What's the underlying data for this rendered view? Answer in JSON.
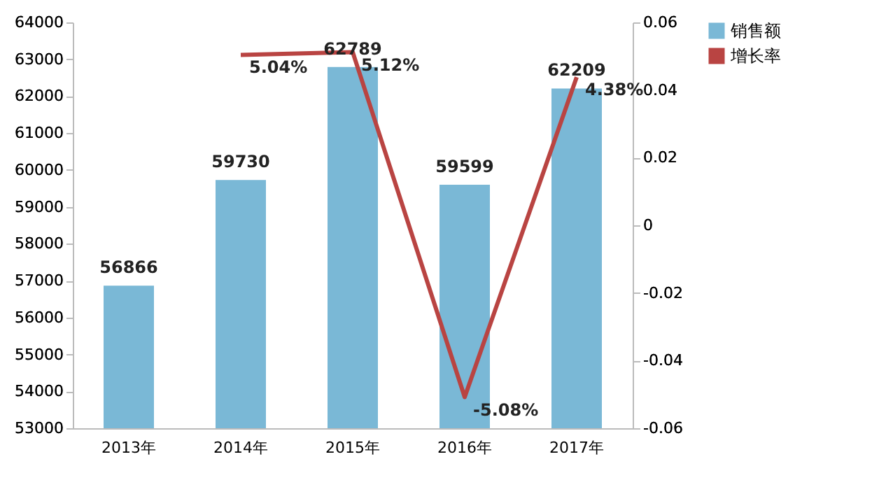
{
  "chart_data": {
    "type": "bar",
    "categories": [
      "2013年",
      "2014年",
      "2015年",
      "2016年",
      "2017年"
    ],
    "series": [
      {
        "name": "销售额",
        "color": "#7ab8d6",
        "values": [
          56866,
          59730,
          62789,
          59599,
          62209
        ]
      },
      {
        "name": "增长率",
        "type": "line",
        "axis": "y2",
        "color": "#b94442",
        "values": [
          null,
          0.0504,
          0.0512,
          -0.0508,
          0.0438
        ],
        "value_labels": [
          null,
          "5.04%",
          "5.12%",
          "-5.08%",
          "4.38%"
        ]
      }
    ],
    "data_labels": true,
    "ylim": [
      53000,
      64000
    ],
    "yticks": [
      53000,
      54000,
      55000,
      56000,
      57000,
      58000,
      59000,
      60000,
      61000,
      62000,
      63000,
      64000
    ],
    "y2lim": [
      -0.06,
      0.06
    ],
    "y2ticks": [
      -0.06,
      -0.04,
      -0.02,
      0,
      0.02,
      0.04,
      0.06
    ],
    "grid": false,
    "legend": "right"
  }
}
